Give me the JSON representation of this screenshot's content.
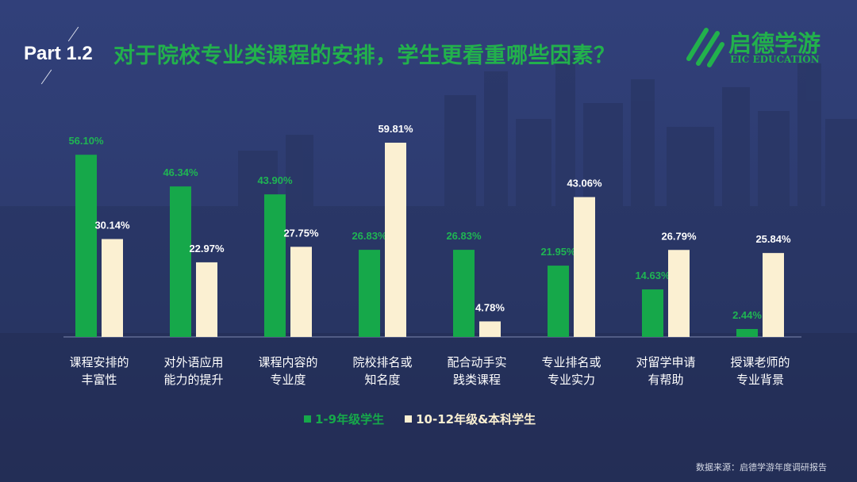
{
  "header": {
    "part_label": "Part 1.2",
    "title": "对于院校专业类课程的安排，学生更看重哪些因素？"
  },
  "logo": {
    "name": "启德学游",
    "subtitle": "EIC EDUCATION"
  },
  "source": "数据来源：启德学游年度调研报告",
  "colors": {
    "background": "#2f3d72",
    "series1": "#16a84a",
    "series2": "#fbf0d2",
    "title": "#22b14c"
  },
  "chart_data": {
    "type": "bar",
    "categories": [
      [
        "课程安排的",
        "丰富性"
      ],
      [
        "对外语应用",
        "能力的提升"
      ],
      [
        "课程内容的",
        "专业度"
      ],
      [
        "院校排名或",
        "知名度"
      ],
      [
        "配合动手实",
        "践类课程"
      ],
      [
        "专业排名或",
        "专业实力"
      ],
      [
        "对留学申请",
        "有帮助"
      ],
      [
        "授课老师的",
        "专业背景"
      ]
    ],
    "series": [
      {
        "name": "1-9年级学生",
        "color": "#16a84a",
        "values": [
          56.1,
          46.34,
          43.9,
          26.83,
          26.83,
          21.95,
          14.63,
          2.44
        ],
        "labels": [
          "56.10%",
          "46.34%",
          "43.90%",
          "26.83%",
          "26.83%",
          "21.95%",
          "14.63%",
          "2.44%"
        ]
      },
      {
        "name": "10-12年级&本科学生",
        "color": "#fbf0d2",
        "values": [
          30.14,
          22.97,
          27.75,
          59.81,
          4.78,
          43.06,
          26.79,
          25.84
        ],
        "labels": [
          "30.14%",
          "22.97%",
          "27.75%",
          "59.81%",
          "4.78%",
          "43.06%",
          "26.79%",
          "25.84%"
        ]
      }
    ],
    "ylim": [
      0,
      60
    ],
    "legend_position": "bottom-center",
    "grid": false
  }
}
